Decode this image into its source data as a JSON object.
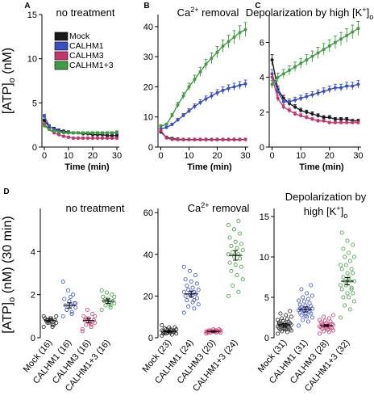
{
  "figure": {
    "ylabel_top_main": "[ATP]",
    "ylabel_top_sub": "o",
    "ylabel_top_unit": " (nM)",
    "ylabel_bottom_main": "[ATP]",
    "ylabel_bottom_sub": "o",
    "ylabel_bottom_unit": " (nM) (30 min)"
  },
  "chart_data": [
    {
      "panel": "A",
      "type": "line",
      "title": "no treatment",
      "xlabel": "Time (min)",
      "xlim": [
        -1,
        31
      ],
      "ylim": [
        0,
        15
      ],
      "xticks": [
        0,
        10,
        20,
        30
      ],
      "yticks": [
        0,
        5,
        10,
        15
      ],
      "legend": [
        "Mock",
        "CALHM1",
        "CALHM3",
        "CALHM1+3"
      ],
      "series": [
        {
          "name": "Mock",
          "color": "#1a1a1a",
          "x": [
            0,
            2,
            4,
            6,
            8,
            10,
            12,
            14,
            16,
            18,
            20,
            22,
            24,
            26,
            28,
            30
          ],
          "y": [
            3.0,
            2.3,
            2.1,
            1.9,
            1.8,
            1.7,
            1.6,
            1.6,
            1.5,
            1.5,
            1.4,
            1.4,
            1.4,
            1.3,
            1.3,
            1.3
          ]
        },
        {
          "name": "CALHM1",
          "color": "#3a4fc4",
          "x": [
            0,
            2,
            4,
            6,
            8,
            10,
            12,
            14,
            16,
            18,
            20,
            22,
            24,
            26,
            28,
            30
          ],
          "y": [
            3.5,
            2.4,
            2.0,
            1.8,
            1.7,
            1.6,
            1.6,
            1.6,
            1.6,
            1.6,
            1.6,
            1.6,
            1.6,
            1.6,
            1.6,
            1.6
          ]
        },
        {
          "name": "CALHM3",
          "color": "#c8356e",
          "x": [
            0,
            2,
            4,
            6,
            8,
            10,
            12,
            14,
            16,
            18,
            20,
            22,
            24,
            26,
            28,
            30
          ],
          "y": [
            2.6,
            2.0,
            1.6,
            1.4,
            1.2,
            1.1,
            1.0,
            1.0,
            1.0,
            1.0,
            1.0,
            1.0,
            1.0,
            1.0,
            1.0,
            1.0
          ]
        },
        {
          "name": "CALHM1+3",
          "color": "#3f9c3f",
          "x": [
            0,
            2,
            4,
            6,
            8,
            10,
            12,
            14,
            16,
            18,
            20,
            22,
            24,
            26,
            28,
            30
          ],
          "y": [
            2.4,
            2.0,
            1.8,
            1.7,
            1.6,
            1.6,
            1.6,
            1.6,
            1.6,
            1.6,
            1.6,
            1.6,
            1.6,
            1.6,
            1.6,
            1.7
          ]
        }
      ]
    },
    {
      "panel": "B",
      "type": "line",
      "title": "Ca2+ removal",
      "xlabel": "Time (min)",
      "xlim": [
        -1,
        31
      ],
      "ylim": [
        0,
        44
      ],
      "xticks": [
        0,
        10,
        20,
        30
      ],
      "yticks": [
        0,
        10,
        20,
        30,
        40
      ],
      "series": [
        {
          "name": "Mock",
          "color": "#1a1a1a",
          "x": [
            0,
            2,
            4,
            6,
            8,
            10,
            12,
            14,
            16,
            18,
            20,
            22,
            24,
            26,
            28,
            30
          ],
          "y": [
            5.0,
            3.2,
            2.8,
            2.6,
            2.5,
            2.5,
            2.5,
            2.5,
            2.5,
            2.5,
            2.5,
            2.5,
            2.5,
            2.5,
            2.5,
            2.5
          ]
        },
        {
          "name": "CALHM1",
          "color": "#3a4fc4",
          "x": [
            0,
            2,
            4,
            6,
            8,
            10,
            12,
            14,
            16,
            18,
            20,
            22,
            24,
            26,
            28,
            30
          ],
          "y": [
            6.0,
            6.5,
            7.5,
            9.0,
            10.5,
            12.0,
            13.5,
            14.8,
            16.0,
            17.0,
            18.0,
            18.8,
            19.5,
            20.0,
            20.5,
            21.0
          ]
        },
        {
          "name": "CALHM3",
          "color": "#c8356e",
          "x": [
            0,
            2,
            4,
            6,
            8,
            10,
            12,
            14,
            16,
            18,
            20,
            22,
            24,
            26,
            28,
            30
          ],
          "y": [
            5.5,
            3.0,
            2.5,
            2.4,
            2.4,
            2.4,
            2.4,
            2.4,
            2.4,
            2.4,
            2.4,
            2.4,
            2.4,
            2.4,
            2.4,
            2.5
          ]
        },
        {
          "name": "CALHM1+3",
          "color": "#3f9c3f",
          "x": [
            0,
            2,
            4,
            6,
            8,
            10,
            12,
            14,
            16,
            18,
            20,
            22,
            24,
            26,
            28,
            30
          ],
          "y": [
            7.0,
            7.5,
            10.5,
            14.0,
            17.0,
            20.0,
            22.5,
            25.0,
            27.5,
            29.5,
            31.5,
            33.5,
            35.0,
            36.5,
            38.0,
            39.0
          ]
        }
      ]
    },
    {
      "panel": "C",
      "type": "line",
      "title": "Depolarization by high [K+]o",
      "xlabel": "Time (min)",
      "xlim": [
        -1,
        31
      ],
      "ylim": [
        0,
        7.6
      ],
      "xticks": [
        0,
        10,
        20,
        30
      ],
      "yticks": [
        0,
        2,
        4,
        6
      ],
      "series": [
        {
          "name": "Mock",
          "color": "#1a1a1a",
          "x": [
            0,
            2,
            4,
            6,
            8,
            10,
            12,
            14,
            16,
            18,
            20,
            22,
            24,
            26,
            28,
            30
          ],
          "y": [
            5.0,
            3.3,
            2.8,
            2.5,
            2.3,
            2.1,
            2.0,
            1.9,
            1.8,
            1.7,
            1.7,
            1.6,
            1.6,
            1.6,
            1.5,
            1.5
          ]
        },
        {
          "name": "CALHM1",
          "color": "#3a4fc4",
          "x": [
            0,
            2,
            4,
            6,
            8,
            10,
            12,
            14,
            16,
            18,
            20,
            22,
            24,
            26,
            28,
            30
          ],
          "y": [
            4.2,
            3.2,
            2.6,
            2.6,
            2.7,
            2.8,
            2.9,
            3.0,
            3.1,
            3.2,
            3.3,
            3.4,
            3.4,
            3.5,
            3.5,
            3.6
          ]
        },
        {
          "name": "CALHM3",
          "color": "#c8356e",
          "x": [
            0,
            2,
            4,
            6,
            8,
            10,
            12,
            14,
            16,
            18,
            20,
            22,
            24,
            26,
            28,
            30
          ],
          "y": [
            4.0,
            2.8,
            2.3,
            2.1,
            1.9,
            1.8,
            1.7,
            1.6,
            1.5,
            1.5,
            1.4,
            1.4,
            1.4,
            1.4,
            1.4,
            1.4
          ]
        },
        {
          "name": "CALHM1+3",
          "color": "#3f9c3f",
          "x": [
            0,
            2,
            4,
            6,
            8,
            10,
            12,
            14,
            16,
            18,
            20,
            22,
            24,
            26,
            28,
            30
          ],
          "y": [
            3.6,
            4.0,
            4.2,
            4.4,
            4.6,
            4.8,
            5.0,
            5.2,
            5.4,
            5.6,
            5.8,
            6.0,
            6.2,
            6.4,
            6.6,
            6.8
          ]
        }
      ]
    },
    {
      "panel": "D1",
      "type": "scatter",
      "title": "no treatment",
      "ylim": [
        0,
        6
      ],
      "yticks": [
        0,
        2,
        4
      ],
      "categories": [
        "Mock (16)",
        "CALHM1 (16)",
        "CALHM3 (16)",
        "CALHM1+3 (16)"
      ],
      "colors": [
        "#1a1a1a",
        "#3a4fc4",
        "#c8356e",
        "#3f9c3f"
      ],
      "means": [
        0.8,
        1.5,
        0.8,
        1.7
      ],
      "sem": [
        0.08,
        0.12,
        0.1,
        0.1
      ],
      "points": [
        [
          0.5,
          0.6,
          0.7,
          0.7,
          0.8,
          0.8,
          0.8,
          0.9,
          0.9,
          0.6,
          0.7,
          1.0,
          0.5,
          0.8,
          1.0,
          0.9
        ],
        [
          1.0,
          1.2,
          1.3,
          1.4,
          1.5,
          1.5,
          1.6,
          1.7,
          1.8,
          2.0,
          2.2,
          2.6,
          1.1,
          1.3,
          1.6,
          1.9
        ],
        [
          0.3,
          0.5,
          0.6,
          0.7,
          0.7,
          0.8,
          0.8,
          0.9,
          1.0,
          1.1,
          1.3,
          0.4,
          0.6,
          0.9,
          1.0,
          0.7
        ],
        [
          1.3,
          1.4,
          1.5,
          1.6,
          1.6,
          1.7,
          1.7,
          1.8,
          1.9,
          2.0,
          2.1,
          2.2,
          1.5,
          1.8,
          1.9,
          1.6
        ]
      ]
    },
    {
      "panel": "D2",
      "type": "scatter",
      "title": "Ca2+ removal",
      "ylim": [
        0,
        62
      ],
      "yticks": [
        0,
        20,
        40,
        60
      ],
      "categories": [
        "Mock (23)",
        "CALHM1 (24)",
        "CALHM3 (20)",
        "CALHM1+3 (24)"
      ],
      "colors": [
        "#1a1a1a",
        "#3a4fc4",
        "#c8356e",
        "#3f9c3f"
      ],
      "means": [
        3.0,
        21.0,
        3.0,
        39.5
      ],
      "sem": [
        0.4,
        1.4,
        0.3,
        2.3
      ],
      "points": [
        [
          1,
          1.5,
          2,
          2,
          2.5,
          2.5,
          3,
          3,
          3,
          3,
          3.5,
          3.5,
          3.5,
          4,
          4,
          4,
          4.5,
          5,
          5,
          2,
          3,
          2.5,
          6
        ],
        [
          12,
          14,
          15,
          16,
          17,
          18,
          19,
          20,
          20,
          21,
          21,
          22,
          22,
          23,
          23,
          24,
          25,
          26,
          27,
          28,
          30,
          32,
          34,
          18
        ],
        [
          2,
          2.5,
          2.5,
          2.5,
          3,
          3,
          3,
          3,
          3,
          3,
          3,
          3,
          3.5,
          3.5,
          3.5,
          3.5,
          3.5,
          4,
          4,
          2.5
        ],
        [
          20,
          22,
          25,
          28,
          30,
          32,
          34,
          35,
          36,
          38,
          39,
          40,
          40,
          41,
          42,
          43,
          44,
          45,
          46,
          48,
          50,
          52,
          54,
          56
        ]
      ]
    },
    {
      "panel": "D3",
      "type": "scatter",
      "title": "Depolarization by high [K+]o",
      "ylim": [
        0,
        16
      ],
      "yticks": [
        0,
        5,
        10,
        15
      ],
      "categories": [
        "Mock (31)",
        "CALHM1 (31)",
        "CALHM3 (28)",
        "CALHM1+3 (32)"
      ],
      "colors": [
        "#1a1a1a",
        "#3a4fc4",
        "#c8356e",
        "#3f9c3f"
      ],
      "means": [
        1.6,
        3.5,
        1.5,
        7.0
      ],
      "sem": [
        0.15,
        0.3,
        0.12,
        0.45
      ],
      "points": [
        [
          0.5,
          0.7,
          0.8,
          0.9,
          1.0,
          1.0,
          1.1,
          1.2,
          1.2,
          1.3,
          1.4,
          1.4,
          1.5,
          1.5,
          1.6,
          1.6,
          1.7,
          1.8,
          1.8,
          1.9,
          2.0,
          2.1,
          2.2,
          2.3,
          2.4,
          2.6,
          2.8,
          3.0,
          3.3,
          1.1,
          1.7
        ],
        [
          1.5,
          2.0,
          2.2,
          2.5,
          2.6,
          2.8,
          3.0,
          3.0,
          3.1,
          3.2,
          3.3,
          3.4,
          3.5,
          3.5,
          3.6,
          3.7,
          3.8,
          3.9,
          4.0,
          4.1,
          4.3,
          4.5,
          4.6,
          4.8,
          5.0,
          5.2,
          5.5,
          6.0,
          6.5,
          2.7,
          3.6
        ],
        [
          0.5,
          0.7,
          0.8,
          0.9,
          1.0,
          1.1,
          1.2,
          1.2,
          1.3,
          1.3,
          1.4,
          1.4,
          1.5,
          1.5,
          1.6,
          1.6,
          1.7,
          1.7,
          1.8,
          1.9,
          2.0,
          2.1,
          2.2,
          2.4,
          2.6,
          2.8,
          1.0,
          1.5
        ],
        [
          2.5,
          3.5,
          4.0,
          4.5,
          5.0,
          5.0,
          5.5,
          5.5,
          6.0,
          6.0,
          6.5,
          6.5,
          7.0,
          7.0,
          7.0,
          7.5,
          7.5,
          8.0,
          8.0,
          8.5,
          8.5,
          9.0,
          9.0,
          9.5,
          10.0,
          10.0,
          10.5,
          11.0,
          11.5,
          12.0,
          13.0,
          6.2
        ]
      ]
    }
  ]
}
